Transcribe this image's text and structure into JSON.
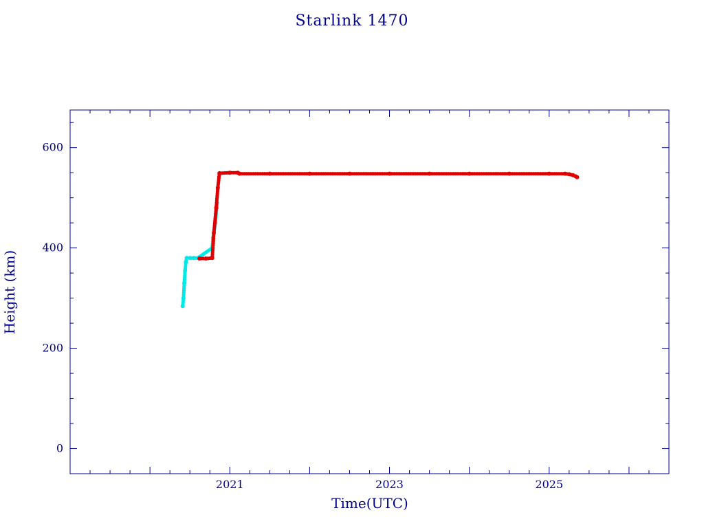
{
  "chart_data": {
    "type": "scatter",
    "title": "Starlink 1470",
    "xlabel": "Time(UTC)",
    "ylabel": "Height (km)",
    "xlim": [
      2019.0,
      2026.5
    ],
    "ylim": [
      -50,
      675
    ],
    "x_ticks": [
      2021,
      2023,
      2025
    ],
    "y_ticks": [
      0,
      200,
      400,
      600
    ],
    "grid": false,
    "colors": {
      "frame": "#00008b",
      "series_a": "#00e8e8",
      "series_b": "#e00000"
    },
    "series": [
      {
        "color": "#00e8e8",
        "points": [
          [
            2020.41,
            284
          ],
          [
            2020.42,
            300
          ],
          [
            2020.43,
            330
          ],
          [
            2020.44,
            355
          ],
          [
            2020.45,
            372
          ],
          [
            2020.46,
            380
          ],
          [
            2020.5,
            380
          ],
          [
            2020.55,
            380
          ],
          [
            2020.6,
            380
          ],
          [
            2020.78,
            400
          ],
          [
            2020.79,
            420
          ],
          [
            2020.82,
            450
          ],
          [
            2020.84,
            490
          ]
        ]
      },
      {
        "color": "#e00000",
        "points": [
          [
            2020.62,
            379
          ],
          [
            2020.7,
            379
          ],
          [
            2020.78,
            380
          ],
          [
            2020.8,
            430
          ],
          [
            2020.83,
            480
          ],
          [
            2020.85,
            520
          ],
          [
            2020.87,
            549
          ],
          [
            2021.0,
            550
          ],
          [
            2021.1,
            550
          ],
          [
            2021.12,
            548
          ],
          [
            2021.5,
            548
          ],
          [
            2022.0,
            548
          ],
          [
            2022.5,
            548
          ],
          [
            2023.0,
            548
          ],
          [
            2023.5,
            548
          ],
          [
            2024.0,
            548
          ],
          [
            2024.5,
            548
          ],
          [
            2025.0,
            548
          ],
          [
            2025.2,
            548
          ],
          [
            2025.25,
            547
          ],
          [
            2025.3,
            545
          ],
          [
            2025.33,
            543
          ],
          [
            2025.35,
            541
          ]
        ]
      }
    ]
  }
}
